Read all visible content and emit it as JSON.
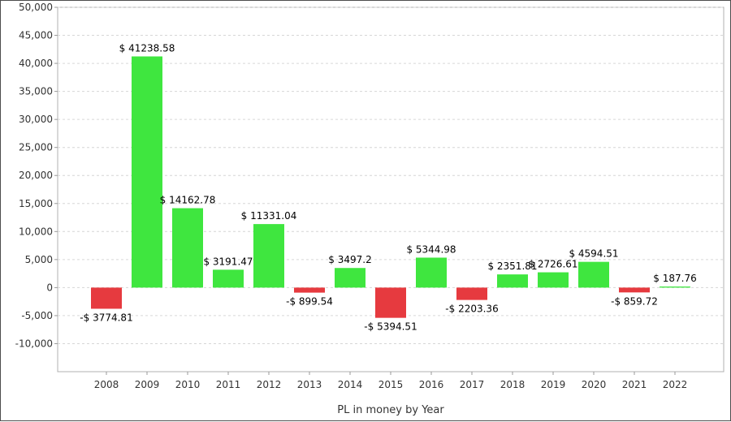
{
  "chart_data": {
    "type": "bar",
    "xlabel": "PL in money by Year",
    "ylabel": "",
    "ylim": [
      -15000,
      50000
    ],
    "yticks": [
      50000,
      45000,
      40000,
      35000,
      30000,
      25000,
      20000,
      15000,
      10000,
      5000,
      0,
      -5000,
      -10000
    ],
    "ytick_labels": [
      "50,000",
      "45,000",
      "40,000",
      "35,000",
      "30,000",
      "25,000",
      "20,000",
      "15,000",
      "10,000",
      "5,000",
      "0",
      "-5,000",
      "-10,000"
    ],
    "categories": [
      "2008",
      "2009",
      "2010",
      "2011",
      "2012",
      "2013",
      "2014",
      "2015",
      "2016",
      "2017",
      "2018",
      "2019",
      "2020",
      "2021",
      "2022"
    ],
    "values": [
      -3774.81,
      41238.58,
      14162.78,
      3191.47,
      11331.04,
      -899.54,
      3497.2,
      -5394.51,
      5344.98,
      -2203.36,
      2351.81,
      2726.61,
      4594.51,
      -859.72,
      187.76
    ],
    "data_labels": [
      "-$ 3774.81",
      "$ 41238.58",
      "$ 14162.78",
      "$ 3191.47",
      "$ 11331.04",
      "-$ 899.54",
      "$ 3497.2",
      "-$ 5394.51",
      "$ 5344.98",
      "-$ 2203.36",
      "$ 2351.81",
      "$ 2726.61",
      "$ 4594.51",
      "-$ 859.72",
      "$ 187.76"
    ],
    "grid": true,
    "colors": {
      "positive": "#3fe63f",
      "negative": "#e63a3f",
      "grid": "#d6d6d6",
      "axis": "#999999"
    }
  }
}
